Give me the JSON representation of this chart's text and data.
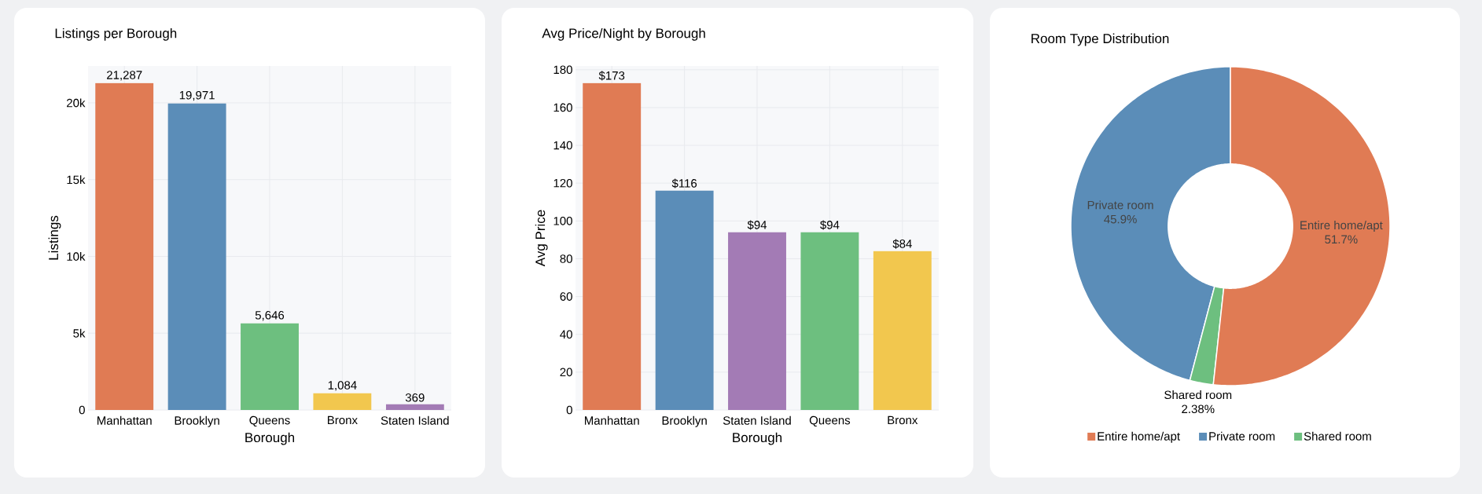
{
  "chart_data": [
    {
      "type": "bar",
      "title": "Listings per Borough",
      "xlabel": "Borough",
      "ylabel": "Listings",
      "categories": [
        "Manhattan",
        "Brooklyn",
        "Queens",
        "Bronx",
        "Staten Island"
      ],
      "values": [
        21287,
        19971,
        5646,
        1084,
        369
      ],
      "value_labels": [
        "21,287",
        "19,971",
        "5,646",
        "1,084",
        "369"
      ],
      "colors": [
        "#e07b54",
        "#5b8db8",
        "#6dbf7f",
        "#f2c74e",
        "#a37bb5"
      ],
      "ylim": [
        0,
        22400
      ],
      "yticks": [
        0,
        {
          "value": 5000,
          "label": "5k"
        },
        {
          "value": 10000,
          "label": "10k"
        },
        {
          "value": 15000,
          "label": "15k"
        },
        {
          "value": 20000,
          "label": "20k"
        }
      ],
      "grid": true
    },
    {
      "type": "bar",
      "title": "Avg Price/Night by Borough",
      "xlabel": "Borough",
      "ylabel": "Avg Price",
      "categories": [
        "Manhattan",
        "Brooklyn",
        "Staten Island",
        "Queens",
        "Bronx"
      ],
      "values": [
        173,
        116,
        94,
        94,
        84
      ],
      "value_labels": [
        "$173",
        "$116",
        "$94",
        "$94",
        "$84"
      ],
      "colors": [
        "#e07b54",
        "#5b8db8",
        "#a37bb5",
        "#6dbf7f",
        "#f2c74e"
      ],
      "ylim": [
        0,
        182
      ],
      "yticks": [
        0,
        20,
        40,
        60,
        80,
        100,
        120,
        140,
        160,
        180
      ],
      "grid": true
    },
    {
      "type": "donut",
      "title": "Room Type Distribution",
      "categories": [
        "Entire home/apt",
        "Private room",
        "Shared room"
      ],
      "values": [
        51.7,
        45.9,
        2.38
      ],
      "value_labels": [
        "51.7%",
        "45.9%",
        "2.38%"
      ],
      "colors": [
        "#e07b54",
        "#5b8db8",
        "#6dbf7f"
      ],
      "legend": "bottom"
    }
  ]
}
